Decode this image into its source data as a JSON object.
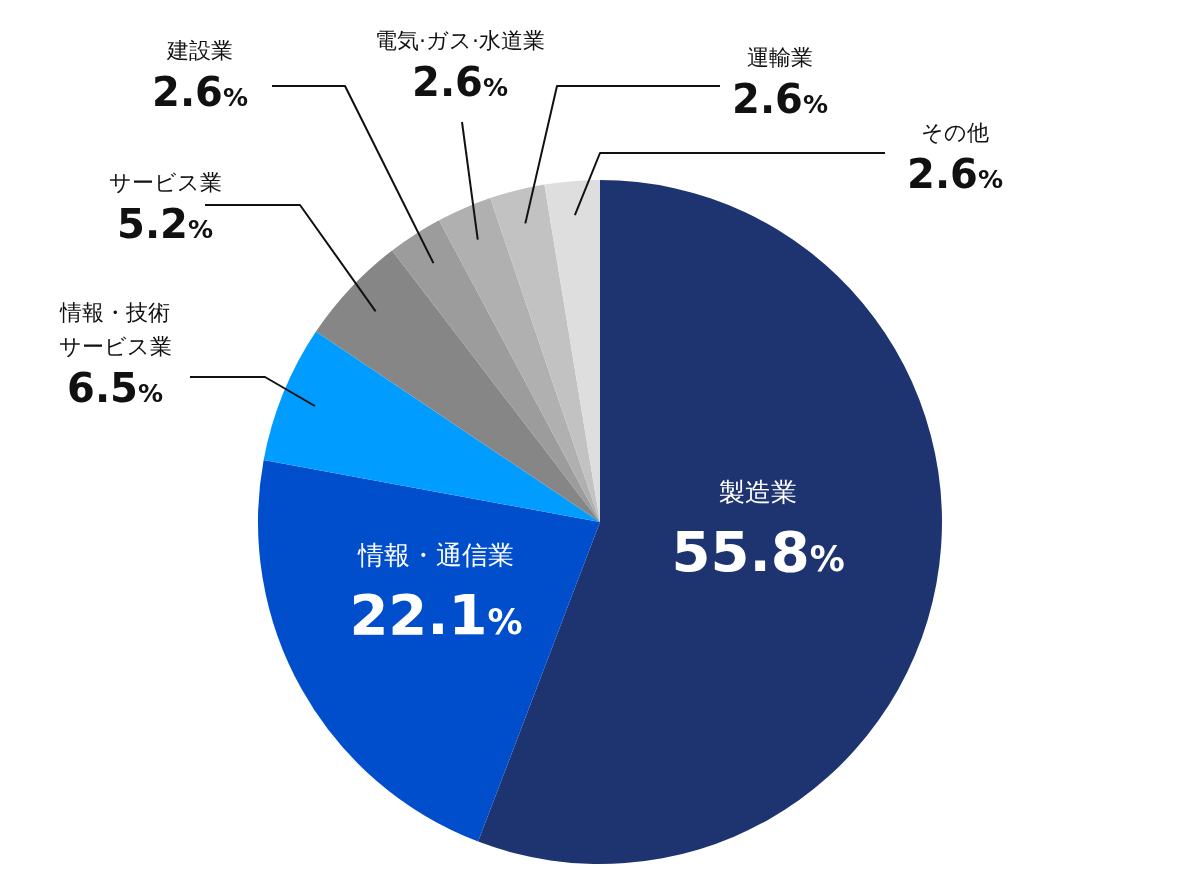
{
  "chart_data": {
    "type": "pie",
    "categories": [
      "製造業",
      "情報・通信業",
      "情報・技術サービス業",
      "サービス業",
      "建設業",
      "電気·ガス·水道業",
      "運輸業",
      "その他"
    ],
    "values": [
      55.8,
      22.1,
      6.5,
      5.2,
      2.6,
      2.6,
      2.6,
      2.6
    ],
    "colors": [
      "#1e3470",
      "#004ecc",
      "#009cff",
      "#868686",
      "#9c9c9c",
      "#b0b0b0",
      "#c2c2c2",
      "#dedede"
    ],
    "value_labels": [
      "55.8%",
      "22.1%",
      "6.5%",
      "5.2%",
      "2.6%",
      "2.6%",
      "2.6%",
      "2.6%"
    ],
    "legend": false
  }
}
